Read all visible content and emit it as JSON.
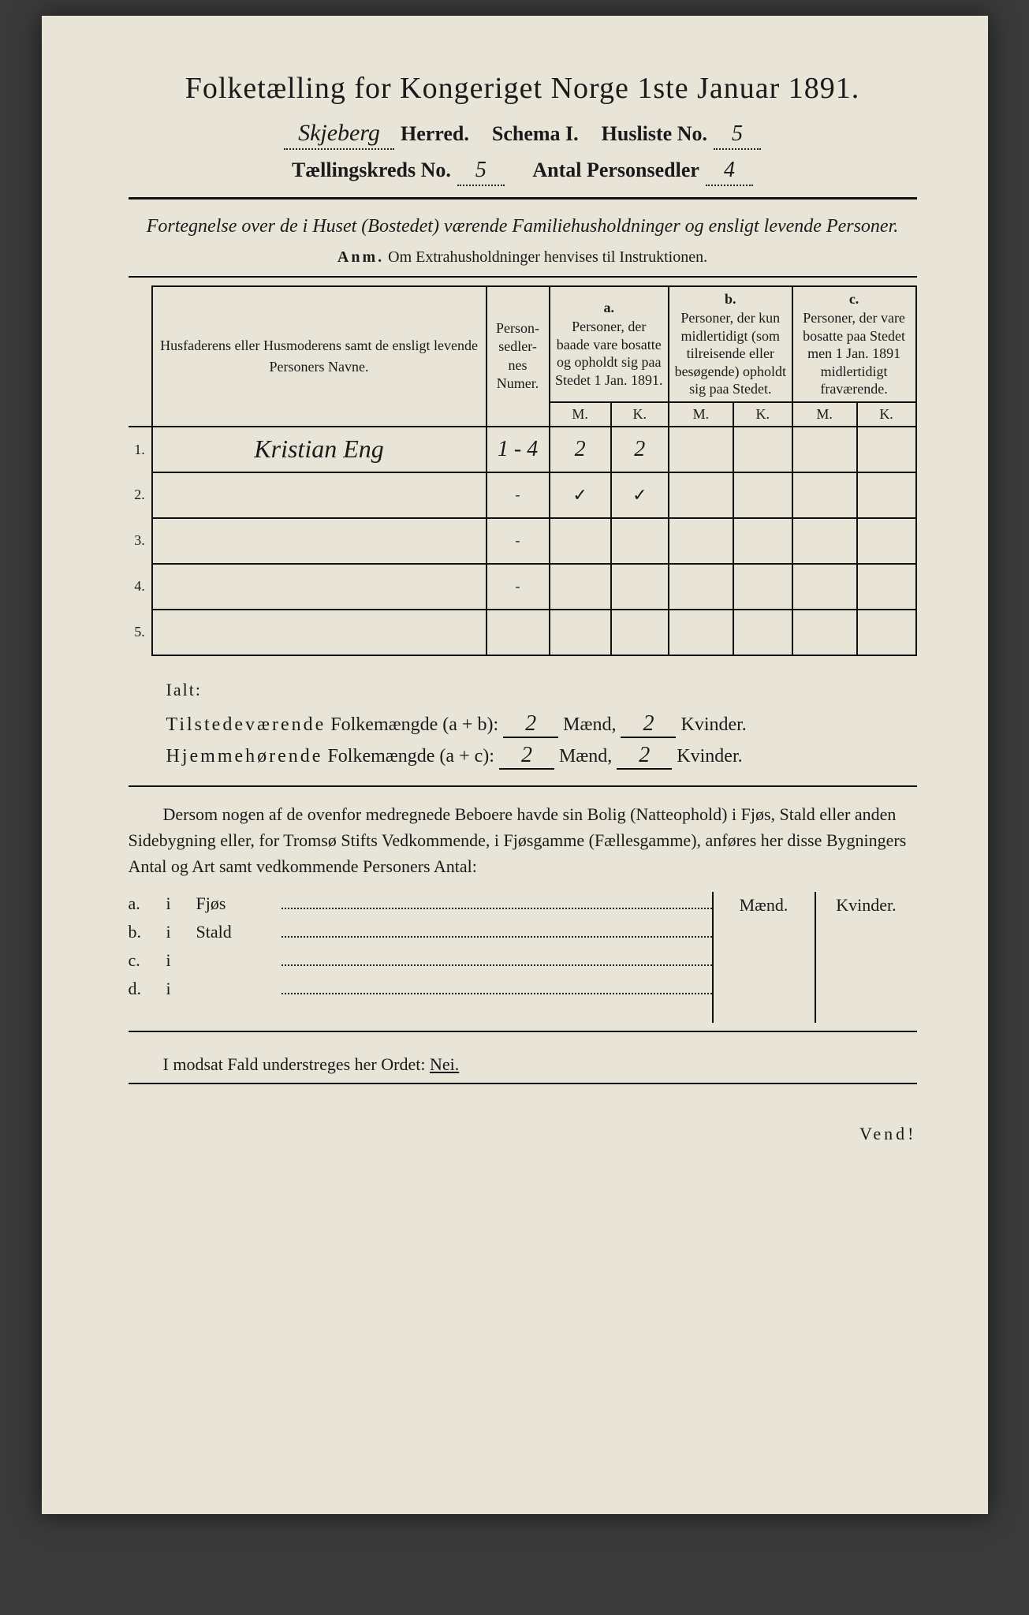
{
  "title": "Folketælling for Kongeriget Norge 1ste Januar 1891.",
  "header": {
    "herred_value": "Skjeberg",
    "herred_label": "Herred.",
    "schema_label": "Schema I.",
    "husliste_label": "Husliste No.",
    "husliste_value": "5",
    "kreds_label": "Tællingskreds No.",
    "kreds_value": "5",
    "antal_label": "Antal Personsedler",
    "antal_value": "4"
  },
  "subtitle": "Fortegnelse over de i Huset (Bostedet) værende Familiehusholdninger og ensligt levende Personer.",
  "anm_prefix": "Anm.",
  "anm_text": "Om Extrahusholdninger henvises til Instruktionen.",
  "table": {
    "col_name": "Husfaderens eller Husmoderens samt de ensligt levende Personers Navne.",
    "col_num": "Person-\nsedler-\nnes\nNumer.",
    "col_a_lbl": "a.",
    "col_a": "Personer, der baade vare bosatte og opholdt sig paa Stedet 1 Jan. 1891.",
    "col_b_lbl": "b.",
    "col_b": "Personer, der kun midlertidigt (som tilreisende eller besøgende) opholdt sig paa Stedet.",
    "col_c_lbl": "c.",
    "col_c": "Personer, der vare bosatte paa Stedet men 1 Jan. 1891 midlertidigt fraværende.",
    "m": "M.",
    "k": "K.",
    "rows": [
      {
        "n": "1.",
        "name": "Kristian Eng",
        "num": "1 - 4",
        "am": "2",
        "ak": "2",
        "bm": "",
        "bk": "",
        "cm": "",
        "ck": ""
      },
      {
        "n": "2.",
        "name": "",
        "num": "-",
        "am": "✓",
        "ak": "✓",
        "bm": "",
        "bk": "",
        "cm": "",
        "ck": ""
      },
      {
        "n": "3.",
        "name": "",
        "num": "-",
        "am": "",
        "ak": "",
        "bm": "",
        "bk": "",
        "cm": "",
        "ck": ""
      },
      {
        "n": "4.",
        "name": "",
        "num": "-",
        "am": "",
        "ak": "",
        "bm": "",
        "bk": "",
        "cm": "",
        "ck": ""
      },
      {
        "n": "5.",
        "name": "",
        "num": "",
        "am": "",
        "ak": "",
        "bm": "",
        "bk": "",
        "cm": "",
        "ck": ""
      }
    ]
  },
  "ialt": {
    "label": "Ialt:",
    "line1_a": "Tilstedeværende",
    "line1_b": "Folkemængde (a + b):",
    "line2_a": "Hjemmehørende",
    "line2_b": "Folkemængde (a + c):",
    "maend": "Mænd,",
    "kvinder": "Kvinder.",
    "v1m": "2",
    "v1k": "2",
    "v2m": "2",
    "v2k": "2"
  },
  "para": "Dersom nogen af de ovenfor medregnede Beboere havde sin Bolig (Natteophold) i Fjøs, Stald eller anden Sidebygning eller, for Tromsø Stifts Vedkommende, i Fjøsgamme (Fællesgamme), anføres her disse Bygningers Antal og Art samt vedkommende Personers Antal:",
  "side": {
    "maend": "Mænd.",
    "kvinder": "Kvinder.",
    "rows": [
      {
        "l": "a.",
        "i": "i",
        "t": "Fjøs"
      },
      {
        "l": "b.",
        "i": "i",
        "t": "Stald"
      },
      {
        "l": "c.",
        "i": "i",
        "t": ""
      },
      {
        "l": "d.",
        "i": "i",
        "t": ""
      }
    ]
  },
  "final_pre": "I modsat Fald understreges her Ordet:",
  "final_word": "Nei.",
  "vend": "Vend!",
  "colors": {
    "paper": "#e8e4d8",
    "ink": "#1a1a1a",
    "bg": "#3a3a3a"
  }
}
